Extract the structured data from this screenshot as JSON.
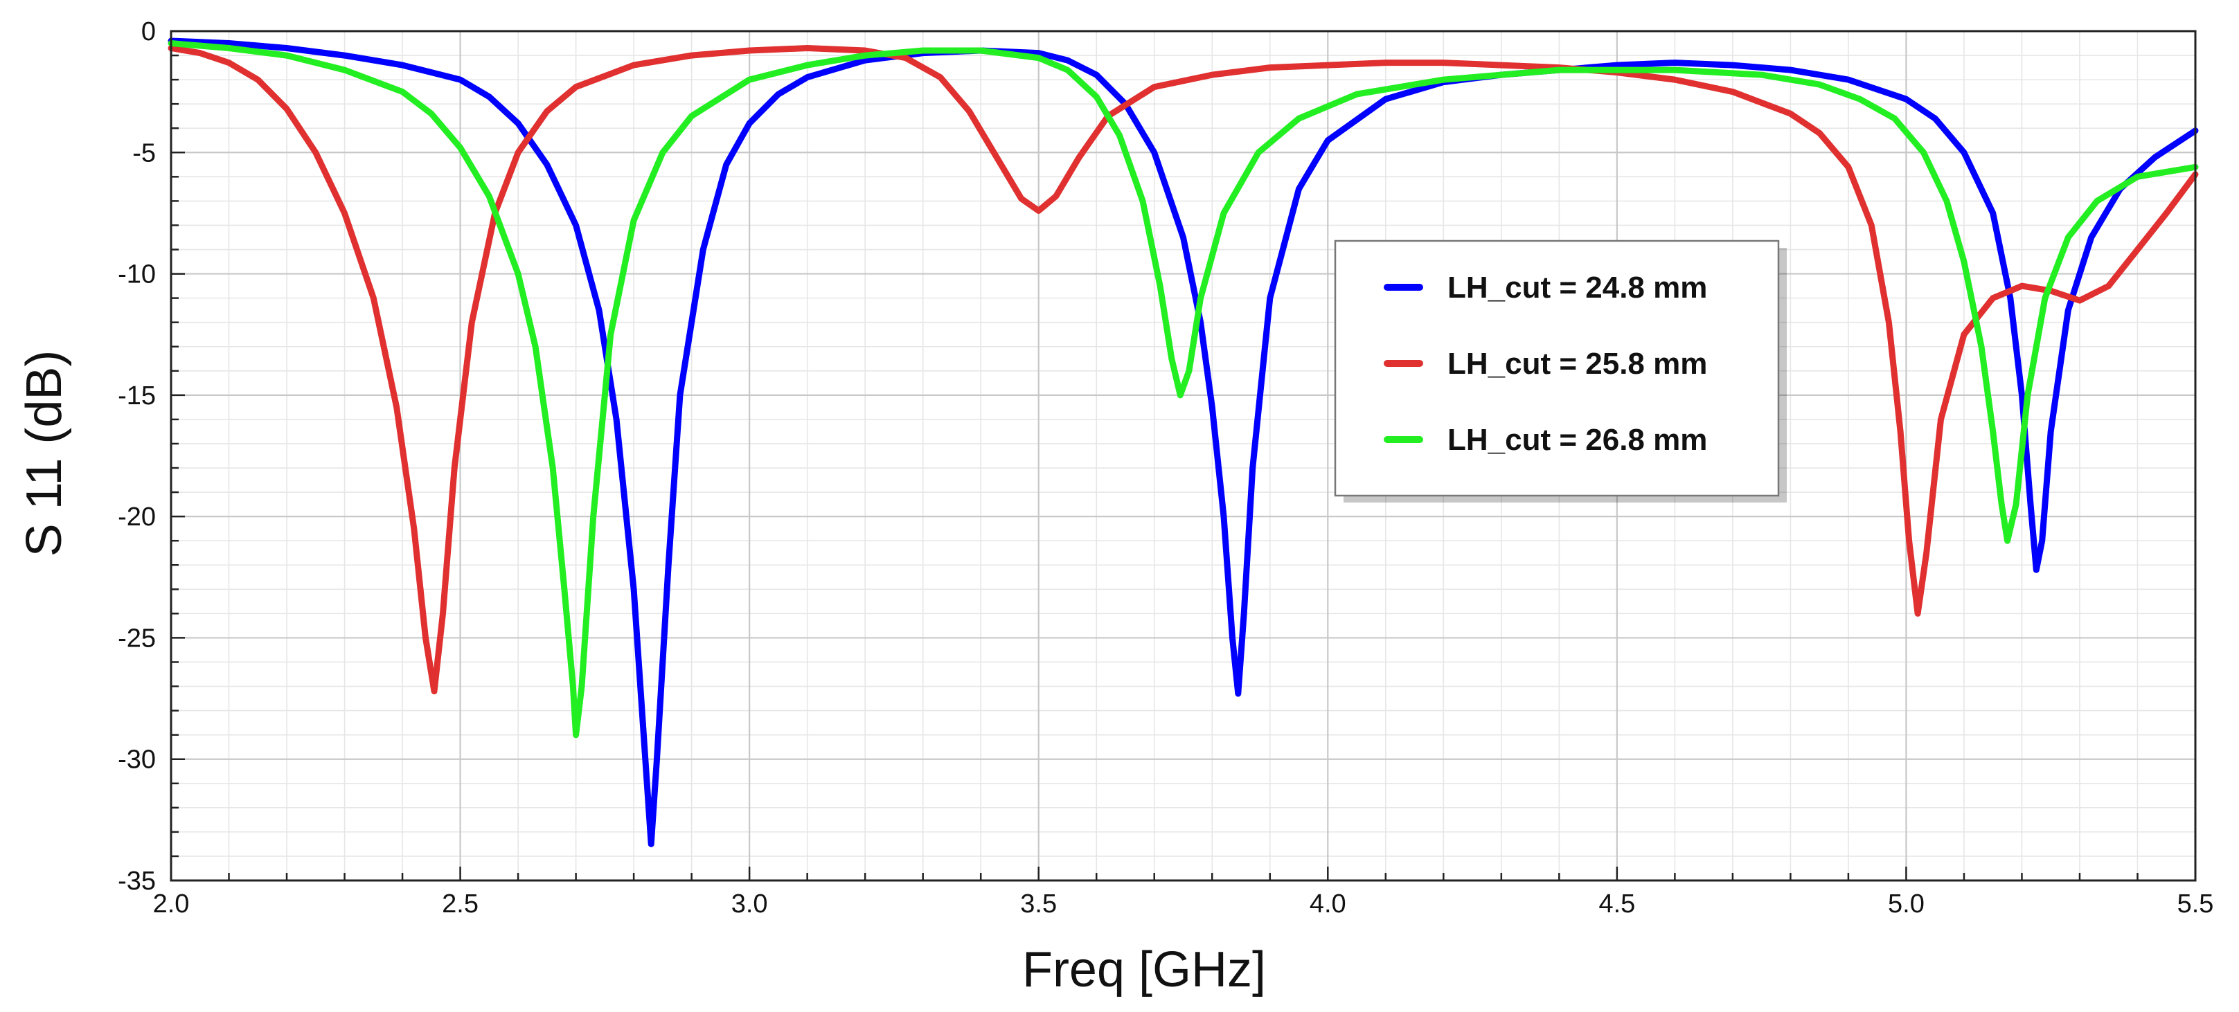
{
  "chart_data": {
    "type": "line",
    "title": "",
    "xlabel": "Freq [GHz]",
    "ylabel": "S 11 (dB)",
    "xlim": [
      2.0,
      5.5
    ],
    "ylim": [
      -35,
      0
    ],
    "x_ticks": [
      2.0,
      2.5,
      3.0,
      3.5,
      4.0,
      4.5,
      5.0,
      5.5
    ],
    "x_tick_labels": [
      "2.0",
      "2.5",
      "3.0",
      "3.5",
      "4.0",
      "4.5",
      "5.0",
      "5.5"
    ],
    "y_ticks": [
      0,
      -5,
      -10,
      -15,
      -20,
      -25,
      -30,
      -35
    ],
    "y_tick_labels": [
      "0",
      "-5",
      "-10",
      "-15",
      "-20",
      "-25",
      "-30",
      "-35"
    ],
    "grid": true,
    "legend_position": "center-right",
    "series": [
      {
        "name": "LH_cut = 24.8 mm",
        "color": "#0000ff",
        "points": [
          [
            2.0,
            -0.4
          ],
          [
            2.1,
            -0.5
          ],
          [
            2.2,
            -0.7
          ],
          [
            2.3,
            -1.0
          ],
          [
            2.4,
            -1.4
          ],
          [
            2.5,
            -2.0
          ],
          [
            2.55,
            -2.7
          ],
          [
            2.6,
            -3.8
          ],
          [
            2.65,
            -5.5
          ],
          [
            2.7,
            -8.0
          ],
          [
            2.74,
            -11.5
          ],
          [
            2.77,
            -16.0
          ],
          [
            2.8,
            -23.0
          ],
          [
            2.82,
            -30.0
          ],
          [
            2.83,
            -33.5
          ],
          [
            2.84,
            -30.0
          ],
          [
            2.86,
            -22.0
          ],
          [
            2.88,
            -15.0
          ],
          [
            2.92,
            -9.0
          ],
          [
            2.96,
            -5.5
          ],
          [
            3.0,
            -3.8
          ],
          [
            3.05,
            -2.6
          ],
          [
            3.1,
            -1.9
          ],
          [
            3.2,
            -1.2
          ],
          [
            3.3,
            -0.9
          ],
          [
            3.4,
            -0.8
          ],
          [
            3.5,
            -0.9
          ],
          [
            3.55,
            -1.2
          ],
          [
            3.6,
            -1.8
          ],
          [
            3.65,
            -3.0
          ],
          [
            3.7,
            -5.0
          ],
          [
            3.75,
            -8.5
          ],
          [
            3.78,
            -12.0
          ],
          [
            3.8,
            -15.5
          ],
          [
            3.82,
            -20.0
          ],
          [
            3.835,
            -25.0
          ],
          [
            3.845,
            -27.3
          ],
          [
            3.855,
            -24.0
          ],
          [
            3.87,
            -18.0
          ],
          [
            3.9,
            -11.0
          ],
          [
            3.95,
            -6.5
          ],
          [
            4.0,
            -4.5
          ],
          [
            4.1,
            -2.8
          ],
          [
            4.2,
            -2.1
          ],
          [
            4.3,
            -1.8
          ],
          [
            4.4,
            -1.6
          ],
          [
            4.5,
            -1.4
          ],
          [
            4.6,
            -1.3
          ],
          [
            4.7,
            -1.4
          ],
          [
            4.8,
            -1.6
          ],
          [
            4.9,
            -2.0
          ],
          [
            5.0,
            -2.8
          ],
          [
            5.05,
            -3.6
          ],
          [
            5.1,
            -5.0
          ],
          [
            5.15,
            -7.5
          ],
          [
            5.18,
            -11.0
          ],
          [
            5.2,
            -15.0
          ],
          [
            5.215,
            -19.5
          ],
          [
            5.225,
            -22.2
          ],
          [
            5.235,
            -21.0
          ],
          [
            5.25,
            -16.5
          ],
          [
            5.28,
            -11.5
          ],
          [
            5.32,
            -8.5
          ],
          [
            5.37,
            -6.5
          ],
          [
            5.43,
            -5.2
          ],
          [
            5.5,
            -4.1
          ]
        ]
      },
      {
        "name": "LH_cut = 25.8 mm",
        "color": "#e03030",
        "points": [
          [
            2.0,
            -0.7
          ],
          [
            2.05,
            -0.9
          ],
          [
            2.1,
            -1.3
          ],
          [
            2.15,
            -2.0
          ],
          [
            2.2,
            -3.2
          ],
          [
            2.25,
            -5.0
          ],
          [
            2.3,
            -7.5
          ],
          [
            2.35,
            -11.0
          ],
          [
            2.39,
            -15.5
          ],
          [
            2.42,
            -20.5
          ],
          [
            2.44,
            -25.0
          ],
          [
            2.455,
            -27.2
          ],
          [
            2.47,
            -24.0
          ],
          [
            2.49,
            -18.0
          ],
          [
            2.52,
            -12.0
          ],
          [
            2.56,
            -7.5
          ],
          [
            2.6,
            -5.0
          ],
          [
            2.65,
            -3.3
          ],
          [
            2.7,
            -2.3
          ],
          [
            2.8,
            -1.4
          ],
          [
            2.9,
            -1.0
          ],
          [
            3.0,
            -0.8
          ],
          [
            3.1,
            -0.7
          ],
          [
            3.2,
            -0.8
          ],
          [
            3.27,
            -1.1
          ],
          [
            3.33,
            -1.9
          ],
          [
            3.38,
            -3.3
          ],
          [
            3.43,
            -5.3
          ],
          [
            3.47,
            -6.9
          ],
          [
            3.5,
            -7.4
          ],
          [
            3.53,
            -6.8
          ],
          [
            3.57,
            -5.2
          ],
          [
            3.62,
            -3.5
          ],
          [
            3.7,
            -2.3
          ],
          [
            3.8,
            -1.8
          ],
          [
            3.9,
            -1.5
          ],
          [
            4.0,
            -1.4
          ],
          [
            4.1,
            -1.3
          ],
          [
            4.2,
            -1.3
          ],
          [
            4.3,
            -1.4
          ],
          [
            4.4,
            -1.5
          ],
          [
            4.5,
            -1.7
          ],
          [
            4.6,
            -2.0
          ],
          [
            4.7,
            -2.5
          ],
          [
            4.8,
            -3.4
          ],
          [
            4.85,
            -4.2
          ],
          [
            4.9,
            -5.6
          ],
          [
            4.94,
            -8.0
          ],
          [
            4.97,
            -12.0
          ],
          [
            4.99,
            -16.5
          ],
          [
            5.005,
            -21.0
          ],
          [
            5.02,
            -24.0
          ],
          [
            5.035,
            -21.5
          ],
          [
            5.06,
            -16.0
          ],
          [
            5.1,
            -12.5
          ],
          [
            5.15,
            -11.0
          ],
          [
            5.2,
            -10.5
          ],
          [
            5.25,
            -10.7
          ],
          [
            5.3,
            -11.1
          ],
          [
            5.35,
            -10.5
          ],
          [
            5.4,
            -9.0
          ],
          [
            5.45,
            -7.5
          ],
          [
            5.5,
            -5.9
          ]
        ]
      },
      {
        "name": "LH_cut = 26.8 mm",
        "color": "#22ee22",
        "points": [
          [
            2.0,
            -0.5
          ],
          [
            2.1,
            -0.7
          ],
          [
            2.2,
            -1.0
          ],
          [
            2.3,
            -1.6
          ],
          [
            2.4,
            -2.5
          ],
          [
            2.45,
            -3.4
          ],
          [
            2.5,
            -4.8
          ],
          [
            2.55,
            -6.8
          ],
          [
            2.6,
            -10.0
          ],
          [
            2.63,
            -13.0
          ],
          [
            2.66,
            -18.0
          ],
          [
            2.68,
            -23.0
          ],
          [
            2.695,
            -27.0
          ],
          [
            2.7,
            -29.0
          ],
          [
            2.71,
            -27.0
          ],
          [
            2.73,
            -20.0
          ],
          [
            2.76,
            -12.5
          ],
          [
            2.8,
            -7.8
          ],
          [
            2.85,
            -5.0
          ],
          [
            2.9,
            -3.5
          ],
          [
            3.0,
            -2.0
          ],
          [
            3.1,
            -1.4
          ],
          [
            3.2,
            -1.0
          ],
          [
            3.3,
            -0.8
          ],
          [
            3.4,
            -0.8
          ],
          [
            3.5,
            -1.1
          ],
          [
            3.55,
            -1.6
          ],
          [
            3.6,
            -2.7
          ],
          [
            3.64,
            -4.3
          ],
          [
            3.68,
            -7.0
          ],
          [
            3.71,
            -10.5
          ],
          [
            3.73,
            -13.5
          ],
          [
            3.745,
            -15.0
          ],
          [
            3.76,
            -14.0
          ],
          [
            3.78,
            -11.0
          ],
          [
            3.82,
            -7.5
          ],
          [
            3.88,
            -5.0
          ],
          [
            3.95,
            -3.6
          ],
          [
            4.05,
            -2.6
          ],
          [
            4.2,
            -2.0
          ],
          [
            4.4,
            -1.6
          ],
          [
            4.6,
            -1.6
          ],
          [
            4.75,
            -1.8
          ],
          [
            4.85,
            -2.2
          ],
          [
            4.92,
            -2.8
          ],
          [
            4.98,
            -3.6
          ],
          [
            5.03,
            -5.0
          ],
          [
            5.07,
            -7.0
          ],
          [
            5.1,
            -9.5
          ],
          [
            5.13,
            -13.0
          ],
          [
            5.15,
            -16.5
          ],
          [
            5.165,
            -19.5
          ],
          [
            5.175,
            -21.0
          ],
          [
            5.19,
            -19.5
          ],
          [
            5.21,
            -15.0
          ],
          [
            5.24,
            -11.0
          ],
          [
            5.28,
            -8.5
          ],
          [
            5.33,
            -7.0
          ],
          [
            5.4,
            -6.0
          ],
          [
            5.5,
            -5.6
          ]
        ]
      }
    ]
  }
}
